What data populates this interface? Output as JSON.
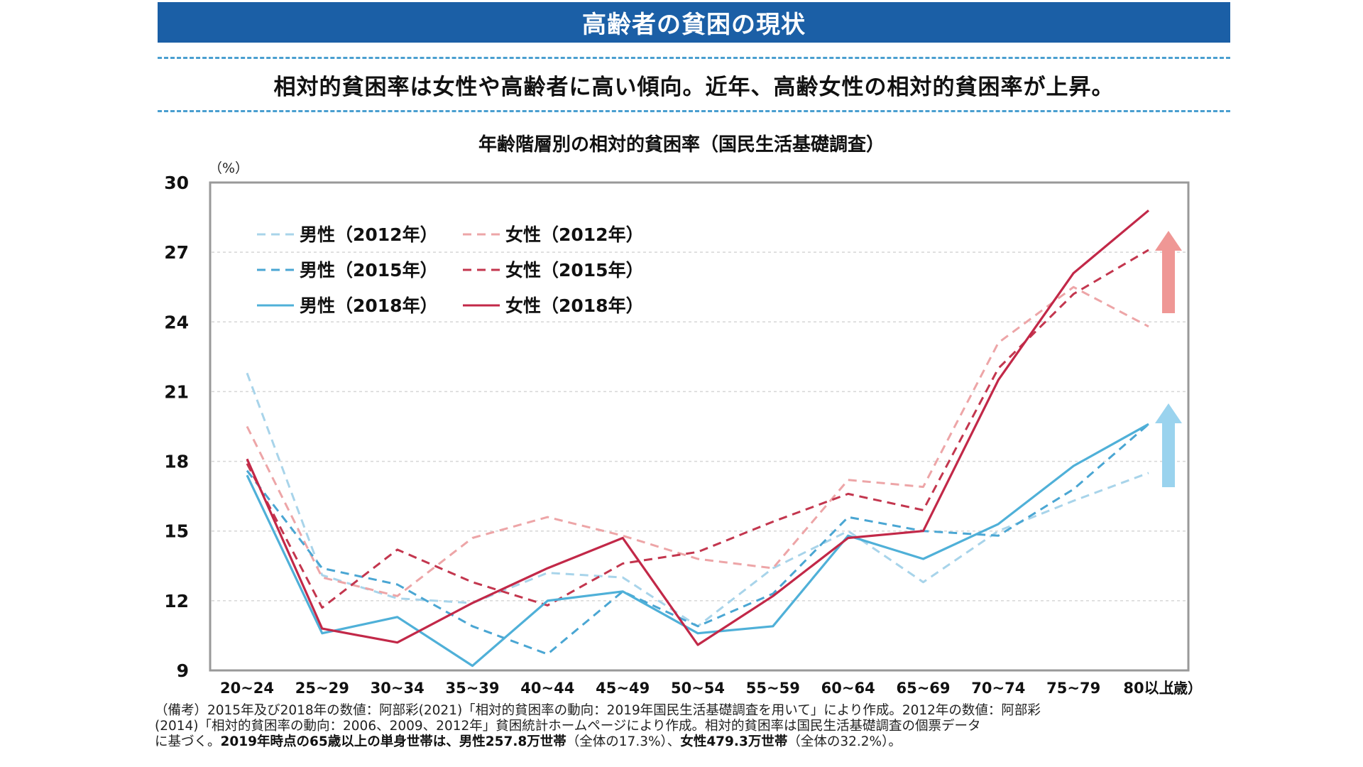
{
  "header": {
    "title": "高齢者の貧困の現状"
  },
  "subtitle": "相対的貧困率は女性や高齢者に高い傾向。近年、高齢女性の相対的貧困率が上昇。",
  "chart_data": {
    "type": "line",
    "title": "年齢階層別の相対的貧困率（国民生活基礎調査）",
    "ylabel": "（%）",
    "xlabel": "",
    "x_unit": "（歳）",
    "ylim": [
      9,
      30
    ],
    "yticks": [
      "30",
      "27",
      "24",
      "21",
      "18",
      "15",
      "12",
      "9"
    ],
    "ytick_values": [
      30,
      27,
      24,
      21,
      18,
      15,
      12,
      9
    ],
    "categories": [
      "20~24",
      "25~29",
      "30~34",
      "35~39",
      "40~44",
      "45~49",
      "50~54",
      "55~59",
      "60~64",
      "65~69",
      "70~74",
      "75~79",
      "80以上"
    ],
    "grid": true,
    "legend_position": "top-left",
    "series": [
      {
        "name": "男性（2012年）",
        "color": "#a8d4ea",
        "style": "dashed",
        "values": [
          21.8,
          13.1,
          12.1,
          11.9,
          13.2,
          13.0,
          10.9,
          13.4,
          15.0,
          12.8,
          15.0,
          16.3,
          17.5
        ]
      },
      {
        "name": "女性（2012年）",
        "color": "#eda5a7",
        "style": "dashed",
        "values": [
          19.5,
          13.0,
          12.2,
          14.7,
          15.6,
          14.8,
          13.8,
          13.4,
          17.2,
          16.9,
          23.1,
          25.5,
          23.8
        ]
      },
      {
        "name": "男性（2015年）",
        "color": "#4aa6d3",
        "style": "dashed",
        "values": [
          17.6,
          13.4,
          12.7,
          10.9,
          9.7,
          12.4,
          10.9,
          12.3,
          15.6,
          15.0,
          14.8,
          16.8,
          19.6
        ]
      },
      {
        "name": "女性（2015年）",
        "color": "#c3364e",
        "style": "dashed",
        "values": [
          17.9,
          11.7,
          14.2,
          12.8,
          11.8,
          13.6,
          14.1,
          15.4,
          16.6,
          15.9,
          22.0,
          25.2,
          27.1
        ]
      },
      {
        "name": "男性（2018年）",
        "color": "#4fb0d8",
        "style": "solid",
        "values": [
          17.4,
          10.6,
          11.3,
          9.2,
          12.0,
          12.4,
          10.6,
          10.9,
          14.8,
          13.8,
          15.3,
          17.8,
          19.6
        ]
      },
      {
        "name": "女性（2018年）",
        "color": "#c22848",
        "style": "solid",
        "values": [
          18.1,
          10.8,
          10.2,
          11.9,
          13.4,
          14.7,
          10.1,
          12.2,
          14.7,
          15.0,
          21.5,
          26.1,
          28.8
        ]
      }
    ],
    "annotations": [
      {
        "name": "female-increase-arrow",
        "color": "#ef9795"
      },
      {
        "name": "male-increase-arrow",
        "color": "#9ad3ee"
      }
    ]
  },
  "notes": {
    "line1": "（備考）2015年及び2018年の数値：阿部彩(2021)「相対的貧困率の動向：2019年国民生活基礎調査を用いて」により作成。2012年の数値：阿部彩",
    "line2": "(2014)「相対的貧困率の動向：2006、2009、2012年」貧困統計ホームページにより作成。相対的貧困率は国民生活基礎調査の個票データ",
    "line3_a": "に基づく。",
    "line3_b": "2019年時点の65歳以上の単身世帯は、男性257.8万世帯",
    "line3_c": "（全体の17.3%）、",
    "line3_d": "女性479.3万世帯",
    "line3_e": "（全体の32.2%）。"
  }
}
